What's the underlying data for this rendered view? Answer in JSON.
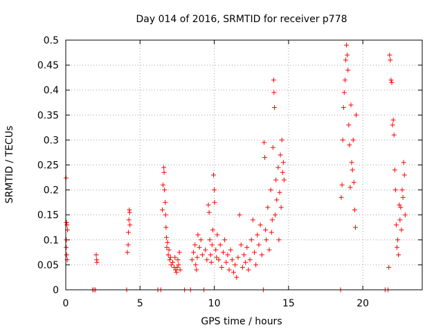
{
  "chart_data": {
    "type": "scatter",
    "title": "Day 014 of 2016, SRMTID for receiver p778",
    "xlabel": "GPS time / hours",
    "ylabel": "SRMTID / TECUs",
    "xlim": [
      0,
      24
    ],
    "ylim": [
      0,
      0.5
    ],
    "x_ticks": [
      0,
      5,
      10,
      15,
      20
    ],
    "x_tick_labels": [
      "0",
      "5",
      "10",
      "15",
      "20"
    ],
    "y_ticks": [
      0,
      0.05,
      0.1,
      0.15,
      0.2,
      0.25,
      0.3,
      0.35,
      0.4,
      0.45,
      0.5
    ],
    "y_tick_labels": [
      "0",
      "0.05",
      "0.1",
      "0.15",
      "0.2",
      "0.25",
      "0.3",
      "0.35",
      "0.4",
      "0.45",
      "0.5"
    ],
    "grid": true,
    "marker": "+",
    "color": "#ff0000",
    "series": [
      {
        "name": "SRMTID",
        "points": [
          [
            0.02,
            0.224
          ],
          [
            0.05,
            0.135
          ],
          [
            0.08,
            0.13
          ],
          [
            0.03,
            0.085
          ],
          [
            0.06,
            0.07
          ],
          [
            0.1,
            0.06
          ],
          [
            0.12,
            0.12
          ],
          [
            0.04,
            0.1
          ],
          [
            1.8,
            0
          ],
          [
            1.9,
            0
          ],
          [
            2.0,
            0
          ],
          [
            2.05,
            0.07
          ],
          [
            2.08,
            0.06
          ],
          [
            2.1,
            0.055
          ],
          [
            4.1,
            0
          ],
          [
            4.15,
            0.075
          ],
          [
            4.2,
            0.09
          ],
          [
            4.22,
            0.115
          ],
          [
            4.25,
            0.14
          ],
          [
            4.28,
            0.16
          ],
          [
            4.3,
            0.155
          ],
          [
            4.32,
            0.13
          ],
          [
            6.2,
            0
          ],
          [
            6.4,
            0
          ],
          [
            6.5,
            0.16
          ],
          [
            6.55,
            0.21
          ],
          [
            6.6,
            0.245
          ],
          [
            6.62,
            0.235
          ],
          [
            6.65,
            0.2
          ],
          [
            6.7,
            0.175
          ],
          [
            6.72,
            0.15
          ],
          [
            6.75,
            0.125
          ],
          [
            6.78,
            0.105
          ],
          [
            6.8,
            0.085
          ],
          [
            6.85,
            0.095
          ],
          [
            6.9,
            0.07
          ],
          [
            6.95,
            0.08
          ],
          [
            7.0,
            0.06
          ],
          [
            7.05,
            0.065
          ],
          [
            7.1,
            0.05
          ],
          [
            7.2,
            0.055
          ],
          [
            7.3,
            0.045
          ],
          [
            7.35,
            0.065
          ],
          [
            7.4,
            0.04
          ],
          [
            7.45,
            0.035
          ],
          [
            7.5,
            0.045
          ],
          [
            7.55,
            0.06
          ],
          [
            7.6,
            0.05
          ],
          [
            7.65,
            0.075
          ],
          [
            7.7,
            0.04
          ],
          [
            8.0,
            0
          ],
          [
            8.4,
            0
          ],
          [
            8.5,
            0.06
          ],
          [
            8.6,
            0.075
          ],
          [
            8.7,
            0.09
          ],
          [
            8.75,
            0.05
          ],
          [
            8.8,
            0.04
          ],
          [
            8.85,
            0.065
          ],
          [
            8.9,
            0.11
          ],
          [
            9.0,
            0.085
          ],
          [
            9.1,
            0.1
          ],
          [
            9.2,
            0.07
          ],
          [
            9.3,
            0
          ],
          [
            9.4,
            0.08
          ],
          [
            9.5,
            0.06
          ],
          [
            9.6,
            0.17
          ],
          [
            9.65,
            0.155
          ],
          [
            9.7,
            0.1
          ],
          [
            9.75,
            0.07
          ],
          [
            9.8,
            0.055
          ],
          [
            9.85,
            0.09
          ],
          [
            9.9,
            0.12
          ],
          [
            9.95,
            0.23
          ],
          [
            10.0,
            0.2
          ],
          [
            10.02,
            0.175
          ],
          [
            10.1,
            0.08
          ],
          [
            10.15,
            0.065
          ],
          [
            10.2,
            0.11
          ],
          [
            10.3,
            0.06
          ],
          [
            10.4,
            0.09
          ],
          [
            10.5,
            0.045
          ],
          [
            10.6,
            0.075
          ],
          [
            10.7,
            0.1
          ],
          [
            10.8,
            0.055
          ],
          [
            10.9,
            0.07
          ],
          [
            11.0,
            0.04
          ],
          [
            11.1,
            0.08
          ],
          [
            11.2,
            0.06
          ],
          [
            11.3,
            0.035
          ],
          [
            11.4,
            0.05
          ],
          [
            11.5,
            0.025
          ],
          [
            11.6,
            0.065
          ],
          [
            11.7,
            0.15
          ],
          [
            11.8,
            0.09
          ],
          [
            11.9,
            0.045
          ],
          [
            12.0,
            0.07
          ],
          [
            12.1,
            0.055
          ],
          [
            12.2,
            0.085
          ],
          [
            12.3,
            0.04
          ],
          [
            12.4,
            0.06
          ],
          [
            12.5,
            0.1
          ],
          [
            12.6,
            0.14
          ],
          [
            12.7,
            0.075
          ],
          [
            12.8,
            0.05
          ],
          [
            12.9,
            0.11
          ],
          [
            13.0,
            0.09
          ],
          [
            13.1,
            0.13
          ],
          [
            13.2,
            0.07
          ],
          [
            13.3,
            0
          ],
          [
            13.35,
            0.295
          ],
          [
            13.4,
            0.265
          ],
          [
            13.45,
            0.12
          ],
          [
            13.5,
            0.1
          ],
          [
            13.6,
            0.165
          ],
          [
            13.7,
            0.08
          ],
          [
            13.8,
            0.2
          ],
          [
            13.85,
            0.115
          ],
          [
            13.9,
            0.14
          ],
          [
            13.95,
            0.285
          ],
          [
            14.0,
            0.42
          ],
          [
            14.02,
            0.395
          ],
          [
            14.05,
            0.365
          ],
          [
            14.1,
            0.15
          ],
          [
            14.15,
            0.22
          ],
          [
            14.2,
            0.18
          ],
          [
            14.3,
            0.245
          ],
          [
            14.35,
            0.1
          ],
          [
            14.4,
            0.195
          ],
          [
            14.45,
            0.27
          ],
          [
            14.5,
            0.165
          ],
          [
            14.55,
            0.3
          ],
          [
            14.6,
            0.235
          ],
          [
            14.65,
            0.255
          ],
          [
            14.7,
            0.22
          ],
          [
            18.5,
            0
          ],
          [
            18.55,
            0.185
          ],
          [
            18.6,
            0.21
          ],
          [
            18.65,
            0.3
          ],
          [
            18.7,
            0.365
          ],
          [
            18.75,
            0.395
          ],
          [
            18.8,
            0.42
          ],
          [
            18.85,
            0.46
          ],
          [
            18.9,
            0.49
          ],
          [
            18.95,
            0.47
          ],
          [
            19.0,
            0.44
          ],
          [
            19.05,
            0.33
          ],
          [
            19.1,
            0.29
          ],
          [
            19.15,
            0.205
          ],
          [
            19.2,
            0.37
          ],
          [
            19.25,
            0.255
          ],
          [
            19.3,
            0.24
          ],
          [
            19.35,
            0.3
          ],
          [
            19.4,
            0.215
          ],
          [
            19.45,
            0.16
          ],
          [
            19.5,
            0.125
          ],
          [
            19.55,
            0.35
          ],
          [
            21.5,
            0
          ],
          [
            21.7,
            0
          ],
          [
            21.75,
            0.045
          ],
          [
            21.8,
            0.47
          ],
          [
            21.85,
            0.46
          ],
          [
            21.9,
            0.42
          ],
          [
            21.95,
            0.415
          ],
          [
            22.0,
            0.33
          ],
          [
            22.05,
            0.34
          ],
          [
            22.1,
            0.31
          ],
          [
            22.15,
            0.24
          ],
          [
            22.2,
            0.2
          ],
          [
            22.25,
            0.13
          ],
          [
            22.3,
            0.085
          ],
          [
            22.35,
            0.1
          ],
          [
            22.4,
            0.07
          ],
          [
            22.45,
            0.17
          ],
          [
            22.5,
            0.14
          ],
          [
            22.55,
            0.165
          ],
          [
            22.6,
            0.12
          ],
          [
            22.65,
            0.2
          ],
          [
            22.7,
            0.185
          ],
          [
            22.75,
            0.255
          ],
          [
            22.8,
            0.23
          ],
          [
            22.85,
            0.15
          ]
        ]
      }
    ]
  }
}
